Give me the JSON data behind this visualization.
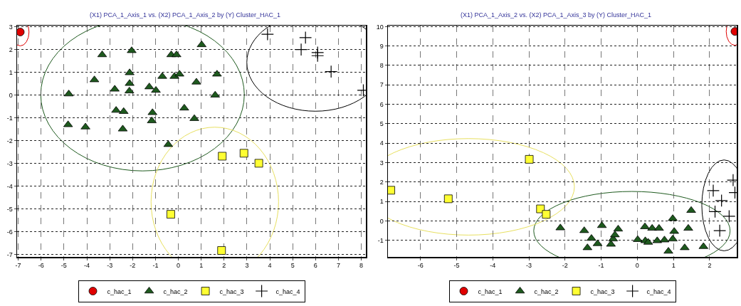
{
  "chart_data": [
    {
      "type": "scatter",
      "title": "(X1) PCA_1_Axis_1 vs. (X2) PCA_1_Axis_2 by (Y) Cluster_HAC_1",
      "xlim": [
        -7.05,
        8.2
      ],
      "xticks": [
        -7,
        -6,
        -5,
        -4,
        -3,
        -2,
        -1,
        0,
        1,
        2,
        3,
        4,
        5,
        6,
        7,
        8
      ],
      "ylim": [
        -7.1,
        3.05
      ],
      "yticks": [
        -7,
        -6,
        -5,
        -4,
        -3,
        -2,
        -1,
        0,
        1,
        2,
        3
      ],
      "grid": true,
      "legend": "bottom",
      "series": [
        {
          "name": "c_hac_1",
          "color": "#e00000",
          "marker": "circle",
          "x": [
            -6.91
          ],
          "values": [
            2.77
          ]
        },
        {
          "name": "c_hac_2",
          "color": "#1e5a1e",
          "marker": "triangle",
          "x": [
            -4.79,
            -4.82,
            -4.06,
            -3.67,
            -3.33,
            -2.78,
            -2.72,
            -2.39,
            -2.43,
            -2.04,
            -2.13,
            -2.13,
            -2.14,
            -1.27,
            -0.98,
            -1.13,
            -1.16,
            -0.7,
            -0.31,
            -0.08,
            -0.17,
            0.05,
            0.26,
            0.79,
            0.7,
            1.02,
            1.69,
            1.61,
            -0.44
          ],
          "values": [
            0.05,
            -1.3,
            -1.4,
            0.67,
            1.77,
            0.26,
            -0.67,
            -0.72,
            -1.49,
            1.95,
            0.98,
            0.51,
            0.18,
            0.36,
            0.21,
            -0.77,
            -1.13,
            0.82,
            1.77,
            1.77,
            0.82,
            0.92,
            -0.57,
            0.57,
            -1.03,
            2.21,
            0.92,
            0.0,
            -2.17
          ]
        },
        {
          "name": "c_hac_3",
          "color": "#ffff33",
          "marker": "square",
          "x": [
            1.92,
            2.87,
            3.52,
            -0.33,
            1.89
          ],
          "values": [
            -2.68,
            -2.55,
            -2.99,
            -5.23,
            -6.82
          ]
        },
        {
          "name": "c_hac_4",
          "color": "#000000",
          "marker": "cross",
          "x": [
            3.9,
            5.56,
            5.37,
            6.09,
            6.09,
            6.68,
            8.09
          ],
          "values": [
            2.67,
            2.52,
            2.0,
            1.87,
            1.73,
            1.03,
            0.21
          ]
        }
      ]
    },
    {
      "type": "scatter",
      "title": "(X1) PCA_1_Axis_2 vs. (X2) PCA_1_Axis_3 by (Y) Cluster_HAC_1",
      "xlim": [
        -6.9,
        2.75
      ],
      "xticks": [
        -6,
        -5,
        -4,
        -3,
        -2,
        -1,
        0,
        1,
        2
      ],
      "ylim": [
        -1.85,
        10.05
      ],
      "yticks": [
        -1,
        0,
        1,
        2,
        3,
        4,
        5,
        6,
        7,
        8,
        9,
        10
      ],
      "grid": true,
      "legend": "bottom",
      "series": [
        {
          "name": "c_hac_1",
          "color": "#e00000",
          "marker": "circle",
          "x": [
            2.7
          ],
          "values": [
            9.75
          ]
        },
        {
          "name": "c_hac_2",
          "color": "#1e5a1e",
          "marker": "triangle",
          "x": [
            -2.13,
            -1.47,
            -1.27,
            -1.38,
            -1.1,
            -0.98,
            -0.73,
            -0.67,
            -0.62,
            -0.53,
            0.01,
            0.21,
            0.22,
            0.3,
            0.41,
            0.55,
            0.6,
            0.75,
            0.86,
            0.98,
            1.02,
            0.98,
            1.31,
            1.41,
            1.49,
            1.83
          ],
          "values": [
            -0.36,
            -0.5,
            -0.9,
            -1.38,
            -1.17,
            -0.24,
            -1.2,
            -0.93,
            -0.72,
            -0.42,
            -0.96,
            -0.3,
            -1.02,
            -1.1,
            -0.38,
            -1.02,
            -0.38,
            -0.98,
            -1.56,
            0.12,
            -0.54,
            -0.93,
            -1.38,
            -0.38,
            0.54,
            -1.32
          ]
        },
        {
          "name": "c_hac_3",
          "color": "#ffff33",
          "marker": "square",
          "x": [
            -6.82,
            -5.23,
            -2.99,
            -2.68,
            -2.52
          ],
          "values": [
            1.58,
            1.14,
            3.17,
            0.62,
            0.34
          ]
        },
        {
          "name": "c_hac_4",
          "color": "#000000",
          "marker": "cross",
          "x": [
            2.1,
            2.33,
            2.65,
            2.7,
            2.15,
            2.54,
            2.28
          ],
          "values": [
            1.56,
            1.05,
            2.1,
            1.46,
            0.48,
            0.24,
            -0.5
          ]
        }
      ]
    }
  ]
}
